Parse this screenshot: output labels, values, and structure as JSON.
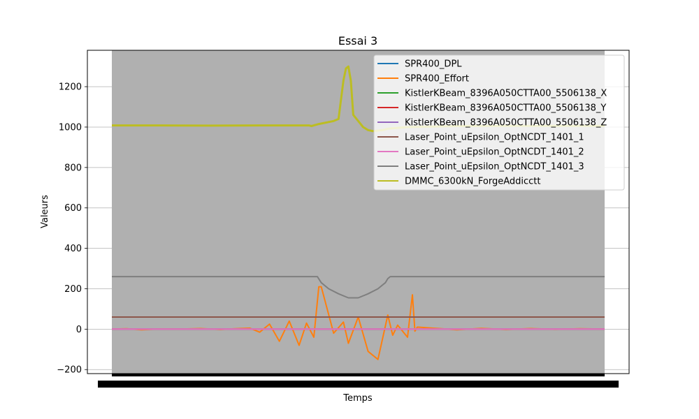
{
  "chart_data": {
    "type": "line",
    "title": "Essai 3",
    "xlabel": "Temps",
    "ylabel": "Valeurs",
    "ylim": [
      -220,
      1380
    ],
    "xlim": [
      0,
      1
    ],
    "yticks": [
      -200,
      0,
      200,
      400,
      600,
      800,
      1000,
      1200
    ],
    "ytick_labels": [
      "−200",
      "0",
      "200",
      "400",
      "600",
      "800",
      "1000",
      "1200"
    ],
    "grid": true,
    "legend_position": "top-right",
    "plot_background": "#b0b0b0",
    "series": [
      {
        "name": "SPR400_DPL",
        "color": "#1f77b4",
        "x": [
          0,
          1
        ],
        "values": [
          0,
          0
        ]
      },
      {
        "name": "SPR400_Effort",
        "color": "#ff7f0e",
        "x": [
          0,
          0.03,
          0.06,
          0.1,
          0.14,
          0.18,
          0.22,
          0.25,
          0.28,
          0.3,
          0.32,
          0.34,
          0.36,
          0.38,
          0.395,
          0.41,
          0.42,
          0.425,
          0.45,
          0.47,
          0.48,
          0.5,
          0.52,
          0.54,
          0.56,
          0.57,
          0.58,
          0.6,
          0.61,
          0.615,
          0.62,
          0.65,
          0.7,
          0.75,
          0.8,
          0.85,
          0.9,
          0.95,
          1
        ],
        "values": [
          0,
          2,
          -3,
          1,
          0,
          3,
          -2,
          2,
          5,
          -15,
          25,
          -60,
          40,
          -80,
          30,
          -40,
          210,
          210,
          -20,
          35,
          -70,
          60,
          -110,
          -150,
          70,
          -30,
          20,
          -40,
          170,
          -10,
          10,
          5,
          -3,
          4,
          -2,
          3,
          -1,
          2,
          0
        ]
      },
      {
        "name": "KistlerKBeam_8396A050CTTA00_5506138_X",
        "color": "#2ca02c",
        "x": [
          0,
          1
        ],
        "values": [
          0,
          0
        ]
      },
      {
        "name": "KistlerKBeam_8396A050CTTA00_5506138_Y",
        "color": "#d62728",
        "x": [
          0,
          1
        ],
        "values": [
          0,
          0
        ]
      },
      {
        "name": "KistlerKBeam_8396A050CTTA00_5506138_Z",
        "color": "#9467bd",
        "x": [
          0,
          1
        ],
        "values": [
          0,
          0
        ]
      },
      {
        "name": "Laser_Point_uEpsilon_OptNCDT_1401_1",
        "color": "#8c564b",
        "x": [
          0,
          1
        ],
        "values": [
          60,
          60
        ]
      },
      {
        "name": "Laser_Point_uEpsilon_OptNCDT_1401_2",
        "color": "#e377c2",
        "x": [
          0,
          1
        ],
        "values": [
          0,
          0
        ]
      },
      {
        "name": "Laser_Point_uEpsilon_OptNCDT_1401_3",
        "color": "#7f7f7f",
        "x": [
          0,
          0.417,
          0.425,
          0.44,
          0.46,
          0.48,
          0.5,
          0.52,
          0.54,
          0.555,
          0.56,
          0.565,
          1
        ],
        "values": [
          260,
          260,
          230,
          200,
          175,
          155,
          155,
          175,
          200,
          230,
          250,
          260,
          260
        ]
      },
      {
        "name": "DMMC_6300kN_ForgeAddicctt",
        "color": "#bcbd22",
        "x": [
          0,
          0.1,
          0.2,
          0.3,
          0.4,
          0.405,
          0.42,
          0.45,
          0.46,
          0.47,
          0.475,
          0.48,
          0.485,
          0.49,
          0.5,
          0.51,
          0.52,
          0.53,
          0.55,
          0.56,
          0.6,
          0.7,
          0.8,
          0.9,
          1
        ],
        "values": [
          1008,
          1008,
          1007,
          1008,
          1008,
          1005,
          1015,
          1030,
          1040,
          1230,
          1290,
          1300,
          1230,
          1060,
          1030,
          1000,
          985,
          980,
          985,
          992,
          1000,
          1005,
          1006,
          1006,
          1006
        ]
      }
    ]
  }
}
